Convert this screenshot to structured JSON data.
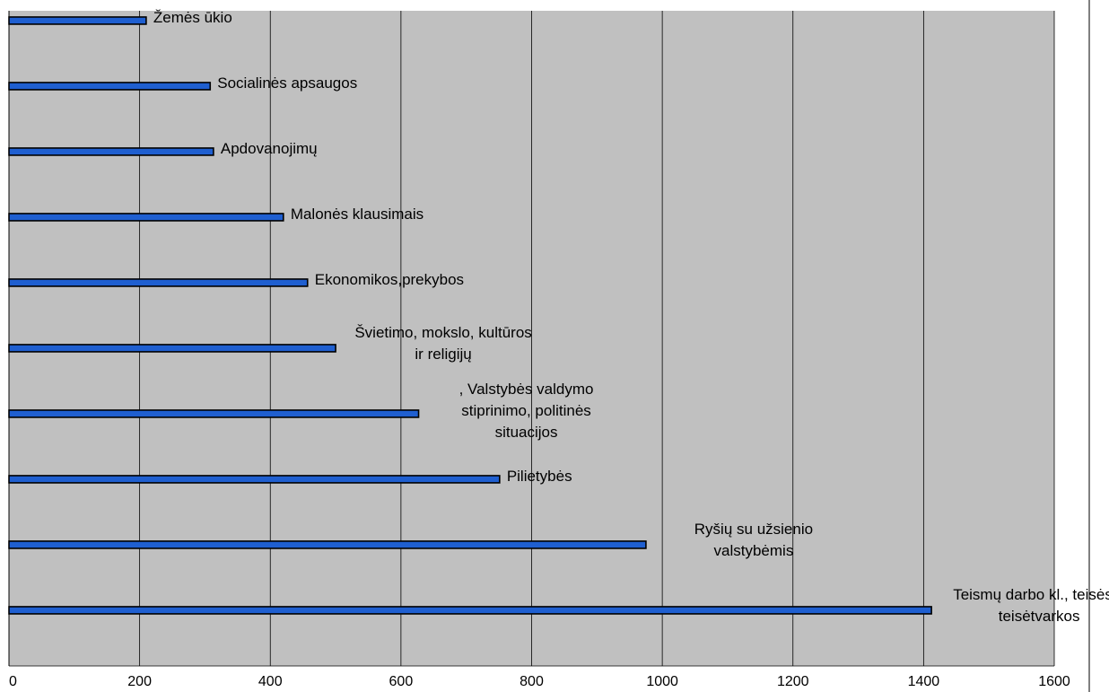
{
  "chart_data": {
    "type": "bar",
    "orientation": "horizontal",
    "categories": [
      [
        "Žemės ūkio"
      ],
      [
        "Socialinės apsaugos"
      ],
      [
        "Apdovanojimų"
      ],
      [
        "Malonės klausimais"
      ],
      [
        "Ekonomikos,prekybos"
      ],
      [
        "Švietimo, mokslo, kultūros",
        "ir religijų"
      ],
      [
        ", Valstybės valdymo",
        "stiprinimo, politinės",
        "situacijos"
      ],
      [
        "Pilietybės"
      ],
      [
        "Ryšių su užsienio",
        "valstybėmis"
      ],
      [
        "Teismų darbo kl., teisės ir",
        "teisėtvarkos"
      ]
    ],
    "values": [
      210,
      308,
      313,
      420,
      457,
      500,
      627,
      751,
      975,
      1412
    ],
    "xlim": [
      0,
      1600
    ],
    "xticks": [
      0,
      200,
      400,
      600,
      800,
      1000,
      1200,
      1400,
      1600
    ],
    "grid": "vertical",
    "legend": "none",
    "colors": {
      "plot_background": "#c0c0c0",
      "bar_fill": "#1f5fd0",
      "bar_stroke": "#000000",
      "gridline": "#000000"
    }
  }
}
